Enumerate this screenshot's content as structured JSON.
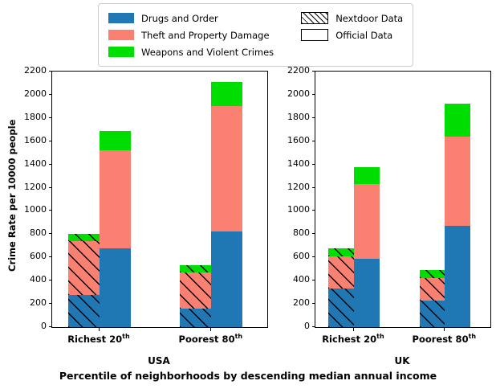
{
  "chart_data": {
    "type": "bar",
    "stacked": true,
    "title": "",
    "ylabel": "Crime Rate per 10000 people",
    "xlabel": "Percentile of neighborhoods by descending median annual income",
    "ylim": [
      0,
      2200
    ],
    "ytick_step": 200,
    "grid": false,
    "legend_position": "top",
    "legend": {
      "color_entries": [
        {
          "label": "Drugs and Order",
          "color": "#1f77b4"
        },
        {
          "label": "Theft and Property Damage",
          "color": "#fa8072"
        },
        {
          "label": "Weapons and Violent Crimes",
          "color": "#00dd00"
        }
      ],
      "style_entries": [
        {
          "label": "Nextdoor Data",
          "hatch": true
        },
        {
          "label": "Official Data",
          "hatch": false
        }
      ]
    },
    "subplots": [
      {
        "axis_label": "USA",
        "groups": [
          {
            "label_main": "Richest 20",
            "label_sup": "th",
            "bars": [
              {
                "style": "Nextdoor Data",
                "values": [
                  280,
                  460,
                  60
                ]
              },
              {
                "style": "Official Data",
                "values": [
                  680,
                  840,
                  170
                ]
              }
            ]
          },
          {
            "label_main": "Poorest 80",
            "label_sup": "th",
            "bars": [
              {
                "style": "Nextdoor Data",
                "values": [
                  160,
                  310,
                  60
                ]
              },
              {
                "style": "Official Data",
                "values": [
                  820,
                  1080,
                  210
                ]
              }
            ]
          }
        ]
      },
      {
        "axis_label": "UK",
        "groups": [
          {
            "label_main": "Richest 20",
            "label_sup": "th",
            "bars": [
              {
                "style": "Nextdoor Data",
                "values": [
                  330,
                  280,
                  70
                ]
              },
              {
                "style": "Official Data",
                "values": [
                  590,
                  640,
                  150
                ]
              }
            ]
          },
          {
            "label_main": "Poorest 80",
            "label_sup": "th",
            "bars": [
              {
                "style": "Nextdoor Data",
                "values": [
                  230,
                  190,
                  70
                ]
              },
              {
                "style": "Official Data",
                "values": [
                  870,
                  770,
                  280
                ]
              }
            ]
          }
        ]
      }
    ]
  }
}
